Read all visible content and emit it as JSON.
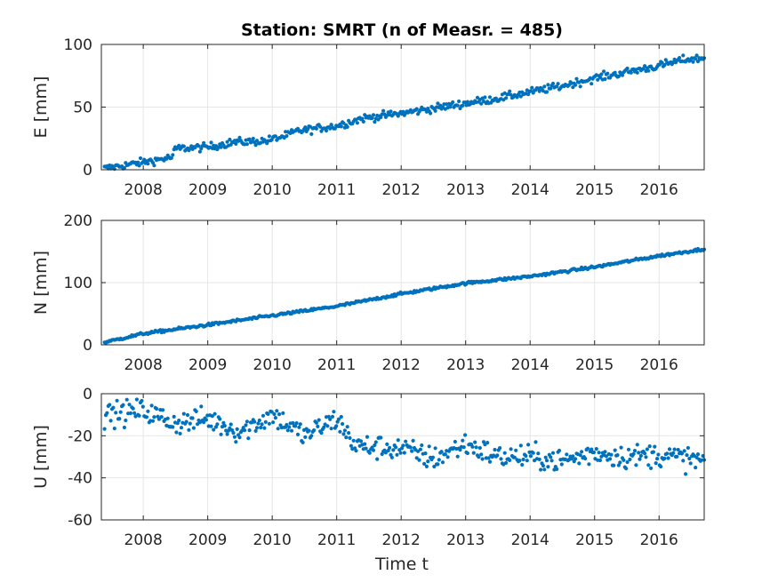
{
  "title": "Station: SMRT (n of Measr. = 485)",
  "xlabel": "Time t",
  "colors": {
    "marker": "#0072BD",
    "grid": "#e6e6e6",
    "axis": "#262626"
  },
  "chart_data": [
    {
      "type": "scatter",
      "name": "E",
      "ylabel": "E [mm]",
      "xlim": [
        2007.35,
        2016.7
      ],
      "ylim": [
        0,
        100
      ],
      "yticks": [
        0,
        50,
        100
      ],
      "xticks": [
        2008,
        2009,
        2010,
        2011,
        2012,
        2013,
        2014,
        2015,
        2016
      ],
      "grid": true,
      "trend": [
        [
          2007.4,
          1
        ],
        [
          2008.0,
          6
        ],
        [
          2008.45,
          10
        ],
        [
          2008.5,
          17
        ],
        [
          2009.0,
          18
        ],
        [
          2009.4,
          22
        ],
        [
          2009.9,
          23
        ],
        [
          2010.2,
          27
        ],
        [
          2010.4,
          31
        ],
        [
          2011.0,
          35
        ],
        [
          2011.4,
          41
        ],
        [
          2012.0,
          45
        ],
        [
          2012.5,
          49
        ],
        [
          2013.0,
          53
        ],
        [
          2013.5,
          57
        ],
        [
          2014.0,
          62
        ],
        [
          2014.5,
          67
        ],
        [
          2015.0,
          73
        ],
        [
          2015.5,
          78
        ],
        [
          2016.0,
          83
        ],
        [
          2016.4,
          88
        ],
        [
          2016.7,
          89
        ]
      ],
      "noise": 2.2,
      "n_points": 485
    },
    {
      "type": "scatter",
      "name": "N",
      "ylabel": "N [mm]",
      "xlim": [
        2007.35,
        2016.7
      ],
      "ylim": [
        0,
        200
      ],
      "yticks": [
        0,
        100,
        200
      ],
      "xticks": [
        2008,
        2009,
        2010,
        2011,
        2012,
        2013,
        2014,
        2015,
        2016
      ],
      "grid": true,
      "trend": [
        [
          2007.4,
          4
        ],
        [
          2008.0,
          18
        ],
        [
          2009.0,
          32
        ],
        [
          2010.0,
          47
        ],
        [
          2011.0,
          62
        ],
        [
          2012.0,
          82
        ],
        [
          2013.0,
          99
        ],
        [
          2014.0,
          110
        ],
        [
          2015.0,
          125
        ],
        [
          2016.0,
          143
        ],
        [
          2016.7,
          154
        ]
      ],
      "noise": 1.5,
      "n_points": 485
    },
    {
      "type": "scatter",
      "name": "U",
      "ylabel": "U [mm]",
      "xlim": [
        2007.35,
        2016.7
      ],
      "ylim": [
        -60,
        0
      ],
      "yticks": [
        -60,
        -40,
        -20,
        0
      ],
      "xticks": [
        2008,
        2009,
        2010,
        2011,
        2012,
        2013,
        2014,
        2015,
        2016
      ],
      "grid": true,
      "trend": [
        [
          2007.4,
          -10
        ],
        [
          2008.0,
          -8
        ],
        [
          2008.5,
          -14
        ],
        [
          2009.0,
          -12
        ],
        [
          2009.5,
          -18
        ],
        [
          2010.0,
          -10
        ],
        [
          2010.5,
          -20
        ],
        [
          2011.0,
          -12
        ],
        [
          2011.3,
          -25
        ],
        [
          2012.0,
          -26
        ],
        [
          2012.5,
          -31
        ],
        [
          2013.0,
          -24
        ],
        [
          2013.5,
          -30
        ],
        [
          2014.0,
          -30
        ],
        [
          2014.5,
          -32
        ],
        [
          2015.0,
          -28
        ],
        [
          2015.5,
          -30
        ],
        [
          2016.0,
          -29
        ],
        [
          2016.7,
          -32
        ]
      ],
      "noise": 4,
      "n_points": 485
    }
  ]
}
